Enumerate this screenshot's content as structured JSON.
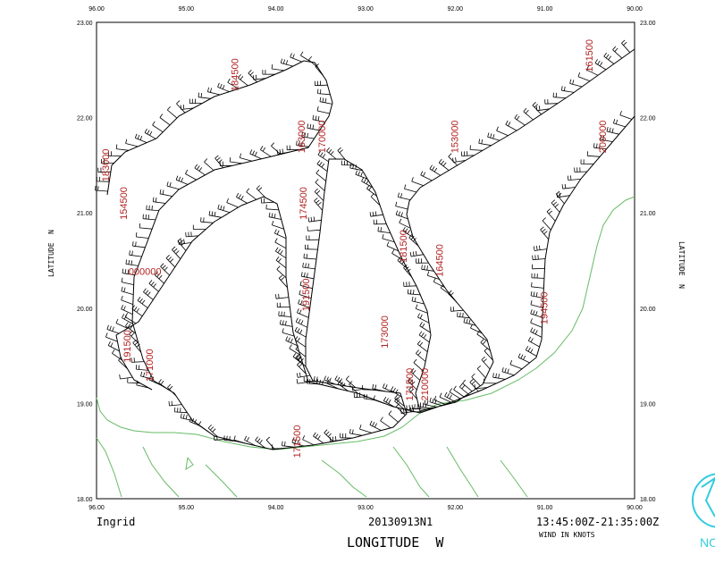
{
  "storm_name": "Ingrid",
  "mission_id": "20130913N1",
  "time_window": "13:45:00Z-21:35:00Z",
  "wind_units": "WIND IN KNOTS",
  "x_axis_title": "LONGITUDE  W",
  "y_axis_title": "LATITUDE  N",
  "top_lon_ticks": [
    "96.00",
    "95.00",
    "94.00",
    "93.00",
    "92.00",
    "91.00",
    "90.00"
  ],
  "bottom_lon_ticks": [
    "96.00",
    "95.00",
    "94.00",
    "93.00",
    "92.00",
    "91.00",
    "90.00"
  ],
  "lat_ticks": [
    "23.00",
    "22.00",
    "21.00",
    "20.00",
    "19.00",
    "18.00"
  ],
  "lon_range": [
    96.0,
    90.0
  ],
  "lat_range": [
    18.0,
    23.0
  ],
  "corner_logo_text": "NO",
  "colors": {
    "track": "#000000",
    "coast": "#66bb66",
    "time_label": "#b22222",
    "logo": "#33ccdd"
  },
  "time_labels": [
    {
      "text": "184500",
      "lon": 94.42,
      "lat": 22.45,
      "rot": -90
    },
    {
      "text": "161500",
      "lon": 90.47,
      "lat": 22.65,
      "rot": -90
    },
    {
      "text": "183000",
      "lon": 95.86,
      "lat": 21.5,
      "rot": -90
    },
    {
      "text": "163000",
      "lon": 93.68,
      "lat": 21.8,
      "rot": -90
    },
    {
      "text": "170000",
      "lon": 93.45,
      "lat": 21.8,
      "rot": -90
    },
    {
      "text": "153000",
      "lon": 91.97,
      "lat": 21.8,
      "rot": -90
    },
    {
      "text": "200000",
      "lon": 90.32,
      "lat": 21.8,
      "rot": -90
    },
    {
      "text": "154500",
      "lon": 95.66,
      "lat": 21.1,
      "rot": -90
    },
    {
      "text": "174500",
      "lon": 93.66,
      "lat": 21.1,
      "rot": -90
    },
    {
      "text": "000000",
      "lon": 95.46,
      "lat": 20.35,
      "rot": 0
    },
    {
      "text": "181500",
      "lon": 92.54,
      "lat": 20.65,
      "rot": -90
    },
    {
      "text": "164500",
      "lon": 92.14,
      "lat": 20.5,
      "rot": -90
    },
    {
      "text": "191500",
      "lon": 93.63,
      "lat": 20.14,
      "rot": -90
    },
    {
      "text": "194500",
      "lon": 90.97,
      "lat": 20.0,
      "rot": -90
    },
    {
      "text": "173000",
      "lon": 92.75,
      "lat": 19.75,
      "rot": -90
    },
    {
      "text": "191500",
      "lon": 95.62,
      "lat": 19.6,
      "rot": -90
    },
    {
      "text": "171000",
      "lon": 95.37,
      "lat": 19.4,
      "rot": -90
    },
    {
      "text": "171500",
      "lon": 92.47,
      "lat": 19.2,
      "rot": -90
    },
    {
      "text": "210000",
      "lon": 92.3,
      "lat": 19.2,
      "rot": -90
    },
    {
      "text": "171500",
      "lon": 93.73,
      "lat": 18.6,
      "rot": -90
    }
  ]
}
